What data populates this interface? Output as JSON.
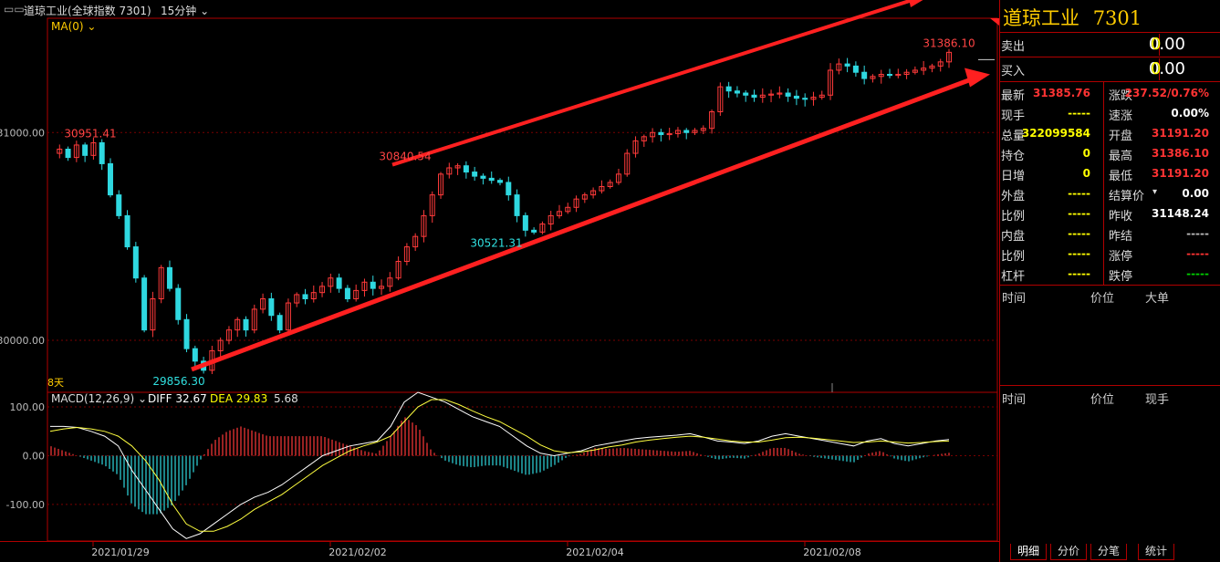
{
  "header": {
    "title": "道琼工业(全球指数 7301)",
    "period": "15分钟",
    "ma_label": "MA(0)",
    "days_label": "8天"
  },
  "macd": {
    "label": "MACD(12,26,9)",
    "diff_label": "DIFF 32.67",
    "dea_label": "DEA 29.83",
    "macd_value": "5.68"
  },
  "chart_data": {
    "type": "candlestick",
    "price_axis": {
      "ticks": [
        "31000.00",
        "30000.00"
      ],
      "ylim": [
        29750,
        31550
      ]
    },
    "macd_axis": {
      "ticks": [
        "100.00",
        "0.00",
        "-100.00"
      ],
      "ylim": [
        -175,
        130
      ]
    },
    "date_labels": [
      "2021/01/29",
      "2021/02/02",
      "2021/02/04",
      "2021/02/08"
    ],
    "price_annotations": [
      {
        "label": "30951.41",
        "value": 30951.41,
        "color": "#ff4444"
      },
      {
        "label": "29856.30",
        "value": 29856.3,
        "color": "#30e0e0"
      },
      {
        "label": "30840.54",
        "value": 30840.54,
        "color": "#ff4444"
      },
      {
        "label": "30521.31",
        "value": 30521.31,
        "color": "#30e0e0"
      },
      {
        "label": "31386.10",
        "value": 31386.1,
        "color": "#ff4444"
      }
    ],
    "trend_lines": [
      {
        "name": "upper",
        "from": 30845,
        "to": 31660
      },
      {
        "name": "lower",
        "from": 29860,
        "to": 31280
      }
    ],
    "price_path": [
      30900,
      30920,
      30880,
      30940,
      30890,
      30951,
      30850,
      30700,
      30600,
      30450,
      30300,
      30050,
      30200,
      30350,
      30250,
      30100,
      29960,
      29900,
      29856,
      29950,
      30000,
      30050,
      30100,
      30050,
      30150,
      30200,
      30120,
      30050,
      30180,
      30220,
      30200,
      30230,
      30260,
      30300,
      30250,
      30200,
      30240,
      30280,
      30250,
      30260,
      30300,
      30380,
      30450,
      30500,
      30600,
      30700,
      30800,
      30830,
      30840,
      30810,
      30790,
      30780,
      30770,
      30760,
      30700,
      30600,
      30530,
      30521,
      30560,
      30600,
      30620,
      30640,
      30680,
      30700,
      30720,
      30740,
      30760,
      30800,
      30900,
      30960,
      30980,
      31000,
      30990,
      30995,
      31010,
      31000,
      31010,
      31020,
      31100,
      31220,
      31200,
      31190,
      31180,
      31170,
      31180,
      31185,
      31190,
      31175,
      31165,
      31160,
      31170,
      31180,
      31300,
      31330,
      31320,
      31290,
      31260,
      31270,
      31280,
      31275,
      31280,
      31290,
      31300,
      31310,
      31320,
      31340,
      31386
    ],
    "diff_path": [
      60,
      60,
      58,
      50,
      40,
      20,
      -30,
      -70,
      -110,
      -150,
      -170,
      -160,
      -140,
      -120,
      -100,
      -85,
      -75,
      -60,
      -40,
      -20,
      0,
      10,
      20,
      25,
      30,
      60,
      110,
      130,
      120,
      110,
      95,
      80,
      70,
      60,
      40,
      20,
      5,
      0,
      5,
      10,
      20,
      25,
      30,
      35,
      38,
      40,
      42,
      45,
      38,
      30,
      28,
      25,
      30,
      40,
      45,
      40,
      35,
      30,
      25,
      20,
      30,
      35,
      25,
      20,
      25,
      30,
      33
    ],
    "dea_path": [
      50,
      55,
      58,
      55,
      50,
      40,
      20,
      -10,
      -50,
      -100,
      -140,
      -155,
      -155,
      -145,
      -130,
      -110,
      -95,
      -80,
      -60,
      -40,
      -20,
      -5,
      10,
      20,
      28,
      40,
      70,
      100,
      115,
      115,
      105,
      92,
      80,
      70,
      55,
      40,
      22,
      10,
      6,
      8,
      12,
      18,
      22,
      28,
      32,
      35,
      38,
      40,
      38,
      34,
      30,
      28,
      28,
      32,
      37,
      38,
      36,
      33,
      30,
      27,
      28,
      30,
      28,
      26,
      27,
      29,
      30
    ],
    "up_color": "#ff3a3a",
    "down_color": "#2fd8e0"
  },
  "quote_panel": {
    "name": "道琼工业",
    "code": "7301",
    "sell": {
      "label": "卖出",
      "price": "0.00",
      "volume": "0"
    },
    "buy": {
      "label": "买入",
      "price": "0.00",
      "volume": "0"
    },
    "rows": [
      {
        "l1": "最新",
        "v1": "31385.76",
        "c1": "red",
        "l2": "涨跌",
        "v2": "237.52/0.76%",
        "c2": "red"
      },
      {
        "l1": "现手",
        "v1": "-----",
        "c1": "yel",
        "l2": "速涨",
        "v2": "0.00%",
        "c2": "wht"
      },
      {
        "l1": "总量",
        "v1": "322099584",
        "c1": "yel",
        "l2": "开盘",
        "v2": "31191.20",
        "c2": "red"
      },
      {
        "l1": "持仓",
        "v1": "0",
        "c1": "yel",
        "l2": "最高",
        "v2": "31386.10",
        "c2": "red"
      },
      {
        "l1": "日增",
        "v1": "0",
        "c1": "yel",
        "l2": "最低",
        "v2": "31191.20",
        "c2": "red"
      },
      {
        "l1": "外盘",
        "v1": "-----",
        "c1": "yel",
        "l2": "结算价",
        "v2": "0.00",
        "c2": "wht"
      },
      {
        "l1": "比例",
        "v1": "-----",
        "c1": "yel",
        "l2": "昨收",
        "v2": "31148.24",
        "c2": "wht"
      },
      {
        "l1": "内盘",
        "v1": "-----",
        "c1": "yel",
        "l2": "昨结",
        "v2": "-----",
        "c2": "gry"
      },
      {
        "l1": "比例",
        "v1": "-----",
        "c1": "yel",
        "l2": "涨停",
        "v2": "-----",
        "c2": "red"
      },
      {
        "l1": "杠杆",
        "v1": "-----",
        "c1": "yel",
        "l2": "跌停",
        "v2": "-----",
        "c2": "grn"
      }
    ],
    "trades_header": {
      "time": "时间",
      "price": "价位",
      "big": "大单"
    },
    "ticks_header": {
      "time": "时间",
      "price": "价位",
      "hand": "现手"
    },
    "tabs": [
      "明细",
      "分价",
      "分笔",
      "统计"
    ]
  }
}
